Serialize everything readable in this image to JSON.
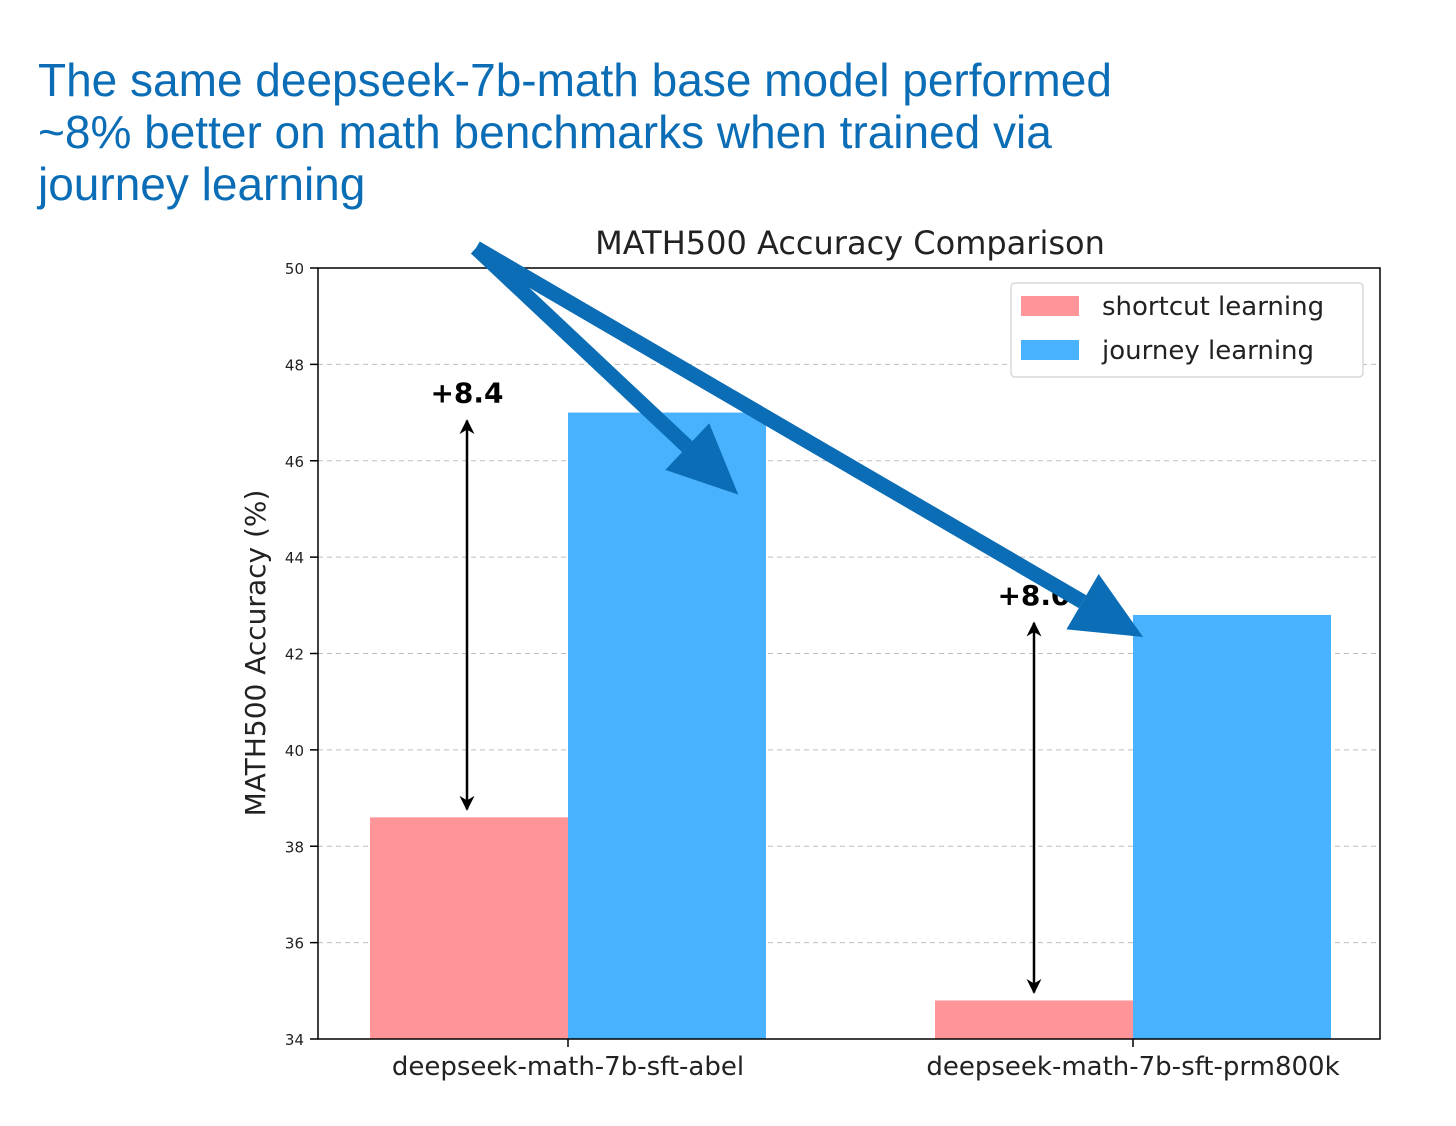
{
  "annotation": {
    "lines": [
      "The same deepseek-7b-math base model performed",
      "~8% better on math benchmarks when trained via",
      "journey learning"
    ],
    "color": "#0b6db5"
  },
  "chart_data": {
    "type": "bar",
    "title": "MATH500 Accuracy Comparison",
    "xlabel": "",
    "ylabel": "MATH500 Accuracy (%)",
    "ylim": [
      34,
      50
    ],
    "yticks": [
      34,
      36,
      38,
      40,
      42,
      44,
      46,
      48,
      50
    ],
    "categories": [
      "deepseek-math-7b-sft-abel",
      "deepseek-math-7b-sft-prm800k"
    ],
    "series": [
      {
        "name": "shortcut learning",
        "values": [
          38.6,
          34.8
        ],
        "color": "#ff9599"
      },
      {
        "name": "journey learning",
        "values": [
          47.0,
          42.8
        ],
        "color": "#48b2ff"
      }
    ],
    "diff_labels": [
      "+8.4",
      "+8.0"
    ],
    "grid": "y-dashed",
    "legend": "top-right"
  }
}
